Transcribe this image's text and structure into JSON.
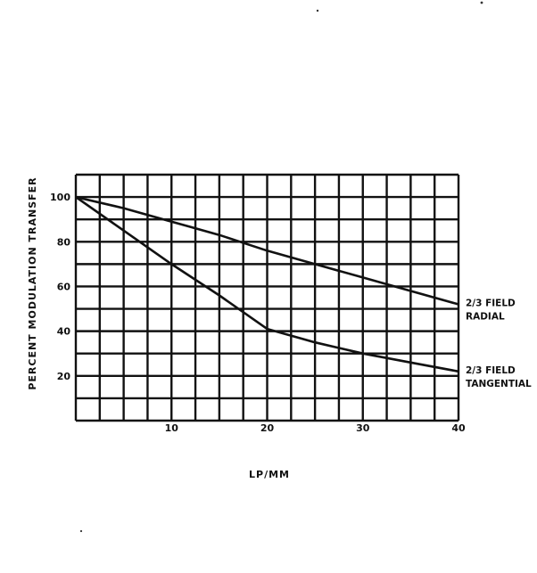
{
  "chart_data": {
    "type": "line",
    "title": "",
    "xlabel": "LP/MM",
    "ylabel": "PERCENT MODULATION TRANSFER",
    "xlim": [
      0,
      40
    ],
    "ylim": [
      0,
      110
    ],
    "x_ticks": [
      10,
      20,
      30,
      40
    ],
    "y_ticks": [
      20,
      40,
      60,
      80,
      100
    ],
    "grid": true,
    "series": [
      {
        "name": "2/3 FIELD RADIAL",
        "label_lines": [
          "2/3 FIELD",
          "RADIAL"
        ],
        "x": [
          0,
          5,
          10,
          15,
          20,
          25,
          30,
          35,
          40
        ],
        "y": [
          100,
          95,
          89,
          83,
          76,
          70,
          64,
          58,
          52
        ]
      },
      {
        "name": "2/3 FIELD TANGENTIAL",
        "label_lines": [
          "2/3 FIELD",
          "TANGENTIAL"
        ],
        "x": [
          0,
          5,
          10,
          15,
          20,
          25,
          30,
          35,
          40
        ],
        "y": [
          100,
          85,
          70,
          56,
          41,
          35,
          30,
          26,
          22
        ]
      }
    ]
  }
}
